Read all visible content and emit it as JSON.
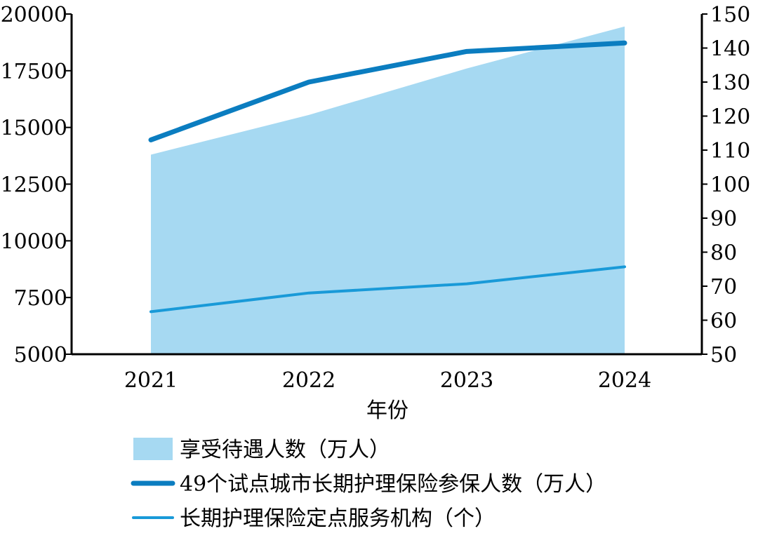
{
  "chart_data": {
    "type": "area",
    "categories": [
      "2021",
      "2022",
      "2023",
      "2024"
    ],
    "xlabel": "年份",
    "y_left": {
      "range": [
        5000,
        20000
      ],
      "ticks": [
        "20000",
        "17500",
        "15000",
        "12500",
        "10000",
        "7500",
        "5000"
      ]
    },
    "y_right": {
      "range": [
        50,
        150
      ],
      "ticks": [
        "150",
        "140",
        "130",
        "120",
        "110",
        "100",
        "90",
        "80",
        "70",
        "60",
        "50"
      ]
    },
    "series": [
      {
        "name": "享受待遇人数（万人）",
        "type": "area",
        "axis": "left",
        "values": [
          13800,
          15550,
          17600,
          19450
        ]
      },
      {
        "name": "49个试点城市长期护理保险参保人数（万人）",
        "type": "line",
        "axis": "right",
        "values": [
          113.0,
          130.0,
          139.0,
          141.5
        ]
      },
      {
        "name": "长期护理保险定点服务机构（个）",
        "type": "line",
        "axis": "right",
        "values": [
          62.5,
          68.0,
          70.7,
          75.7
        ]
      }
    ],
    "colors": {
      "area_fill": "#a6d9f2",
      "thick_line": "#0b7dc0",
      "thin_line": "#199ad8"
    },
    "grid": false,
    "legend_position": "bottom"
  }
}
